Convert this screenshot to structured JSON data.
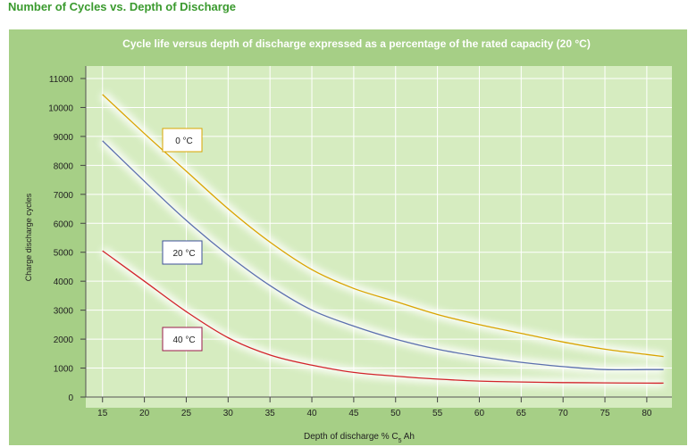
{
  "page": {
    "title": "Number of Cycles vs. Depth of Discharge"
  },
  "chart_data": {
    "type": "line",
    "title": "Cycle life versus depth of discharge expressed as a percentage of the rated capacity (20 °C)",
    "xlabel_main": "Depth of discharge % C",
    "xlabel_sub": "5",
    "xlabel_suffix": " Ah",
    "ylabel": "Charge discharge cycles",
    "xlim": [
      13,
      83
    ],
    "ylim": [
      0,
      11000
    ],
    "xticks": [
      15,
      20,
      25,
      30,
      35,
      40,
      45,
      50,
      55,
      60,
      65,
      70,
      75,
      80
    ],
    "yticks": [
      0,
      1000,
      2000,
      3000,
      4000,
      5000,
      6000,
      7000,
      8000,
      9000,
      10000,
      11000
    ],
    "grid": true,
    "series": [
      {
        "name": "0 °C",
        "label": "0 °C",
        "color": "#d9a400",
        "x": [
          15,
          20,
          25,
          30,
          35,
          40,
          45,
          50,
          55,
          60,
          65,
          70,
          75,
          80,
          82
        ],
        "y": [
          10450,
          9100,
          7800,
          6500,
          5350,
          4400,
          3750,
          3300,
          2850,
          2500,
          2200,
          1900,
          1650,
          1470,
          1400
        ]
      },
      {
        "name": "20 °C",
        "label": "20 °C",
        "color": "#5b6fae",
        "x": [
          15,
          20,
          25,
          30,
          35,
          40,
          45,
          50,
          55,
          60,
          65,
          70,
          75,
          80,
          82
        ],
        "y": [
          8850,
          7450,
          6100,
          4900,
          3850,
          3000,
          2450,
          2000,
          1650,
          1400,
          1200,
          1050,
          950,
          950,
          950
        ]
      },
      {
        "name": "40 °C",
        "label": "40 °C",
        "color": "#d2232a",
        "x": [
          15,
          20,
          25,
          30,
          35,
          40,
          45,
          50,
          55,
          60,
          65,
          70,
          75,
          80,
          82
        ],
        "y": [
          5050,
          4000,
          2950,
          2050,
          1450,
          1100,
          850,
          720,
          620,
          550,
          520,
          500,
          490,
          480,
          480
        ]
      }
    ],
    "labels": [
      {
        "series": "0 °C",
        "text": "0 °C",
        "border": "#d9a400"
      },
      {
        "series": "20 °C",
        "text": "20 °C",
        "border": "#3c4f9a"
      },
      {
        "series": "40 °C",
        "text": "40 °C",
        "border": "#9a1a4a"
      }
    ]
  }
}
